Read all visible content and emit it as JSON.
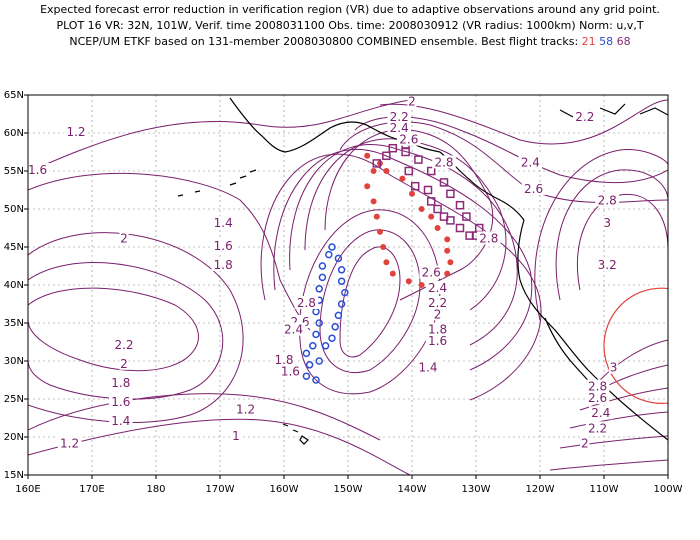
{
  "header": {
    "line1": "Expected forecast error reduction in verification region (VR) due to adaptive observations around any grid point.",
    "line2": "PLOT 16 VR: 32N, 101W, Verif. time 2008031100 Obs. time: 2008030912 (VR radius: 1000km) Norm: u,v,T",
    "line3_prefix": "NCEP/UM ETKF based on 131-member 2008030800 COMBINED ensemble.  Best flight tracks:",
    "track_21": "21",
    "track_58": "58",
    "track_68": "68"
  },
  "colors": {
    "contour": "#7a1f6c",
    "track_21": "#e0433e",
    "track_58": "#2a4dd6",
    "track_68": "#8a2a78",
    "verification_circle": "#e0433e",
    "grid": "#888888"
  },
  "axes": {
    "lon_labels": [
      "160E",
      "170E",
      "180",
      "170W",
      "160W",
      "150W",
      "140W",
      "130W",
      "120W",
      "110W",
      "100W"
    ],
    "lat_labels": [
      "65N",
      "60N",
      "55N",
      "50N",
      "45N",
      "40N",
      "35N",
      "30N",
      "25N",
      "20N",
      "15N"
    ],
    "lon_range": [
      160,
      260
    ],
    "lat_range": [
      15,
      65
    ]
  },
  "contour_labels": [
    {
      "text": "1.2",
      "lon": 167.5,
      "lat": 60
    },
    {
      "text": "1.6",
      "lon": 161.5,
      "lat": 55
    },
    {
      "text": "2",
      "lon": 175,
      "lat": 46
    },
    {
      "text": "1.4",
      "lon": 190.5,
      "lat": 48
    },
    {
      "text": "1.6",
      "lon": 190.5,
      "lat": 45
    },
    {
      "text": "1.8",
      "lon": 190.5,
      "lat": 42.5
    },
    {
      "text": "2.2",
      "lon": 175,
      "lat": 32
    },
    {
      "text": "2",
      "lon": 175,
      "lat": 29.5
    },
    {
      "text": "1.8",
      "lon": 174.5,
      "lat": 27
    },
    {
      "text": "1.6",
      "lon": 174.5,
      "lat": 24.5
    },
    {
      "text": "1.4",
      "lon": 174.5,
      "lat": 22
    },
    {
      "text": "1.2",
      "lon": 166.5,
      "lat": 19
    },
    {
      "text": "1.2",
      "lon": 194,
      "lat": 23.5
    },
    {
      "text": "1",
      "lon": 192.5,
      "lat": 20
    },
    {
      "text": "2",
      "lon": 220,
      "lat": 64
    },
    {
      "text": "2.2",
      "lon": 218,
      "lat": 62
    },
    {
      "text": "2.4",
      "lon": 218,
      "lat": 60.5
    },
    {
      "text": "2.6",
      "lon": 219.5,
      "lat": 59
    },
    {
      "text": "2.8",
      "lon": 225,
      "lat": 56
    },
    {
      "text": "2.2",
      "lon": 247,
      "lat": 62
    },
    {
      "text": "2.4",
      "lon": 238.5,
      "lat": 56
    },
    {
      "text": "2.6",
      "lon": 239,
      "lat": 52.5
    },
    {
      "text": "2.8",
      "lon": 250.5,
      "lat": 51
    },
    {
      "text": "3",
      "lon": 250.5,
      "lat": 48
    },
    {
      "text": "3.2",
      "lon": 250.5,
      "lat": 42.5
    },
    {
      "text": "2.8",
      "lon": 232,
      "lat": 46
    },
    {
      "text": "2.6",
      "lon": 223,
      "lat": 41.5
    },
    {
      "text": "2.4",
      "lon": 224,
      "lat": 39.5
    },
    {
      "text": "2.2",
      "lon": 224,
      "lat": 37.5
    },
    {
      "text": "2",
      "lon": 224,
      "lat": 36
    },
    {
      "text": "1.8",
      "lon": 224,
      "lat": 34
    },
    {
      "text": "1.6",
      "lon": 224,
      "lat": 32.5
    },
    {
      "text": "1.4",
      "lon": 222.5,
      "lat": 29
    },
    {
      "text": "2.8",
      "lon": 203.5,
      "lat": 37.5
    },
    {
      "text": "2.6",
      "lon": 202.5,
      "lat": 35
    },
    {
      "text": "2.4",
      "lon": 201.5,
      "lat": 34
    },
    {
      "text": "1.8",
      "lon": 200,
      "lat": 30
    },
    {
      "text": "1.6",
      "lon": 201,
      "lat": 28.5
    },
    {
      "text": "3",
      "lon": 251.5,
      "lat": 29
    },
    {
      "text": "2.8",
      "lon": 249,
      "lat": 26.5
    },
    {
      "text": "2.6",
      "lon": 249,
      "lat": 25
    },
    {
      "text": "2.4",
      "lon": 249.5,
      "lat": 23
    },
    {
      "text": "2.2",
      "lon": 249,
      "lat": 21
    },
    {
      "text": "2",
      "lon": 247,
      "lat": 19
    }
  ],
  "track_21": [
    [
      213,
      57
    ],
    [
      214,
      55
    ],
    [
      213,
      53
    ],
    [
      214,
      51
    ],
    [
      214.5,
      49
    ],
    [
      215,
      47
    ],
    [
      215.5,
      45
    ],
    [
      216,
      43
    ],
    [
      217,
      41.5
    ],
    [
      219.5,
      40.5
    ],
    [
      221.5,
      40
    ],
    [
      223,
      39.8
    ],
    [
      224.5,
      40
    ],
    [
      225.5,
      41.5
    ],
    [
      226,
      43
    ],
    [
      225.5,
      44.5
    ],
    [
      225.5,
      46
    ],
    [
      224,
      47.5
    ],
    [
      223,
      49
    ],
    [
      221.5,
      50
    ],
    [
      220,
      52
    ],
    [
      218.5,
      54
    ],
    [
      216,
      55
    ],
    [
      215,
      56
    ]
  ],
  "track_58": [
    [
      203.5,
      28
    ],
    [
      204,
      29.5
    ],
    [
      203.5,
      31
    ],
    [
      204.5,
      32
    ],
    [
      205,
      33.5
    ],
    [
      205.5,
      35
    ],
    [
      205,
      36.5
    ],
    [
      205.5,
      38
    ],
    [
      205.5,
      39.5
    ],
    [
      206,
      41
    ],
    [
      206,
      42.5
    ],
    [
      207,
      44
    ],
    [
      207.5,
      45
    ],
    [
      208.5,
      43.5
    ],
    [
      209,
      42
    ],
    [
      209,
      40.5
    ],
    [
      209.5,
      39
    ],
    [
      209,
      37.5
    ],
    [
      208.5,
      36
    ],
    [
      208,
      34.5
    ],
    [
      207.5,
      33
    ],
    [
      206.5,
      32
    ],
    [
      205.5,
      30
    ],
    [
      205,
      27.5
    ]
  ],
  "track_68": [
    [
      214.5,
      56
    ],
    [
      216,
      57
    ],
    [
      217,
      58
    ],
    [
      219,
      57.5
    ],
    [
      219.5,
      55
    ],
    [
      220.5,
      53
    ],
    [
      222.5,
      52.5
    ],
    [
      223,
      51
    ],
    [
      224,
      50
    ],
    [
      225,
      49
    ],
    [
      226,
      48.5
    ],
    [
      227.5,
      47.5
    ],
    [
      229,
      46.5
    ],
    [
      230,
      46.5
    ],
    [
      231.5,
      46
    ],
    [
      232.5,
      46.5
    ],
    [
      230.5,
      47.5
    ],
    [
      228.5,
      49
    ],
    [
      227.5,
      50.5
    ],
    [
      226,
      52
    ],
    [
      225,
      53.5
    ],
    [
      223,
      55
    ],
    [
      221,
      56.5
    ],
    [
      219,
      58.5
    ]
  ],
  "verification_circle": {
    "center_lon": 259,
    "center_lat": 32,
    "radius_deg": 9
  }
}
